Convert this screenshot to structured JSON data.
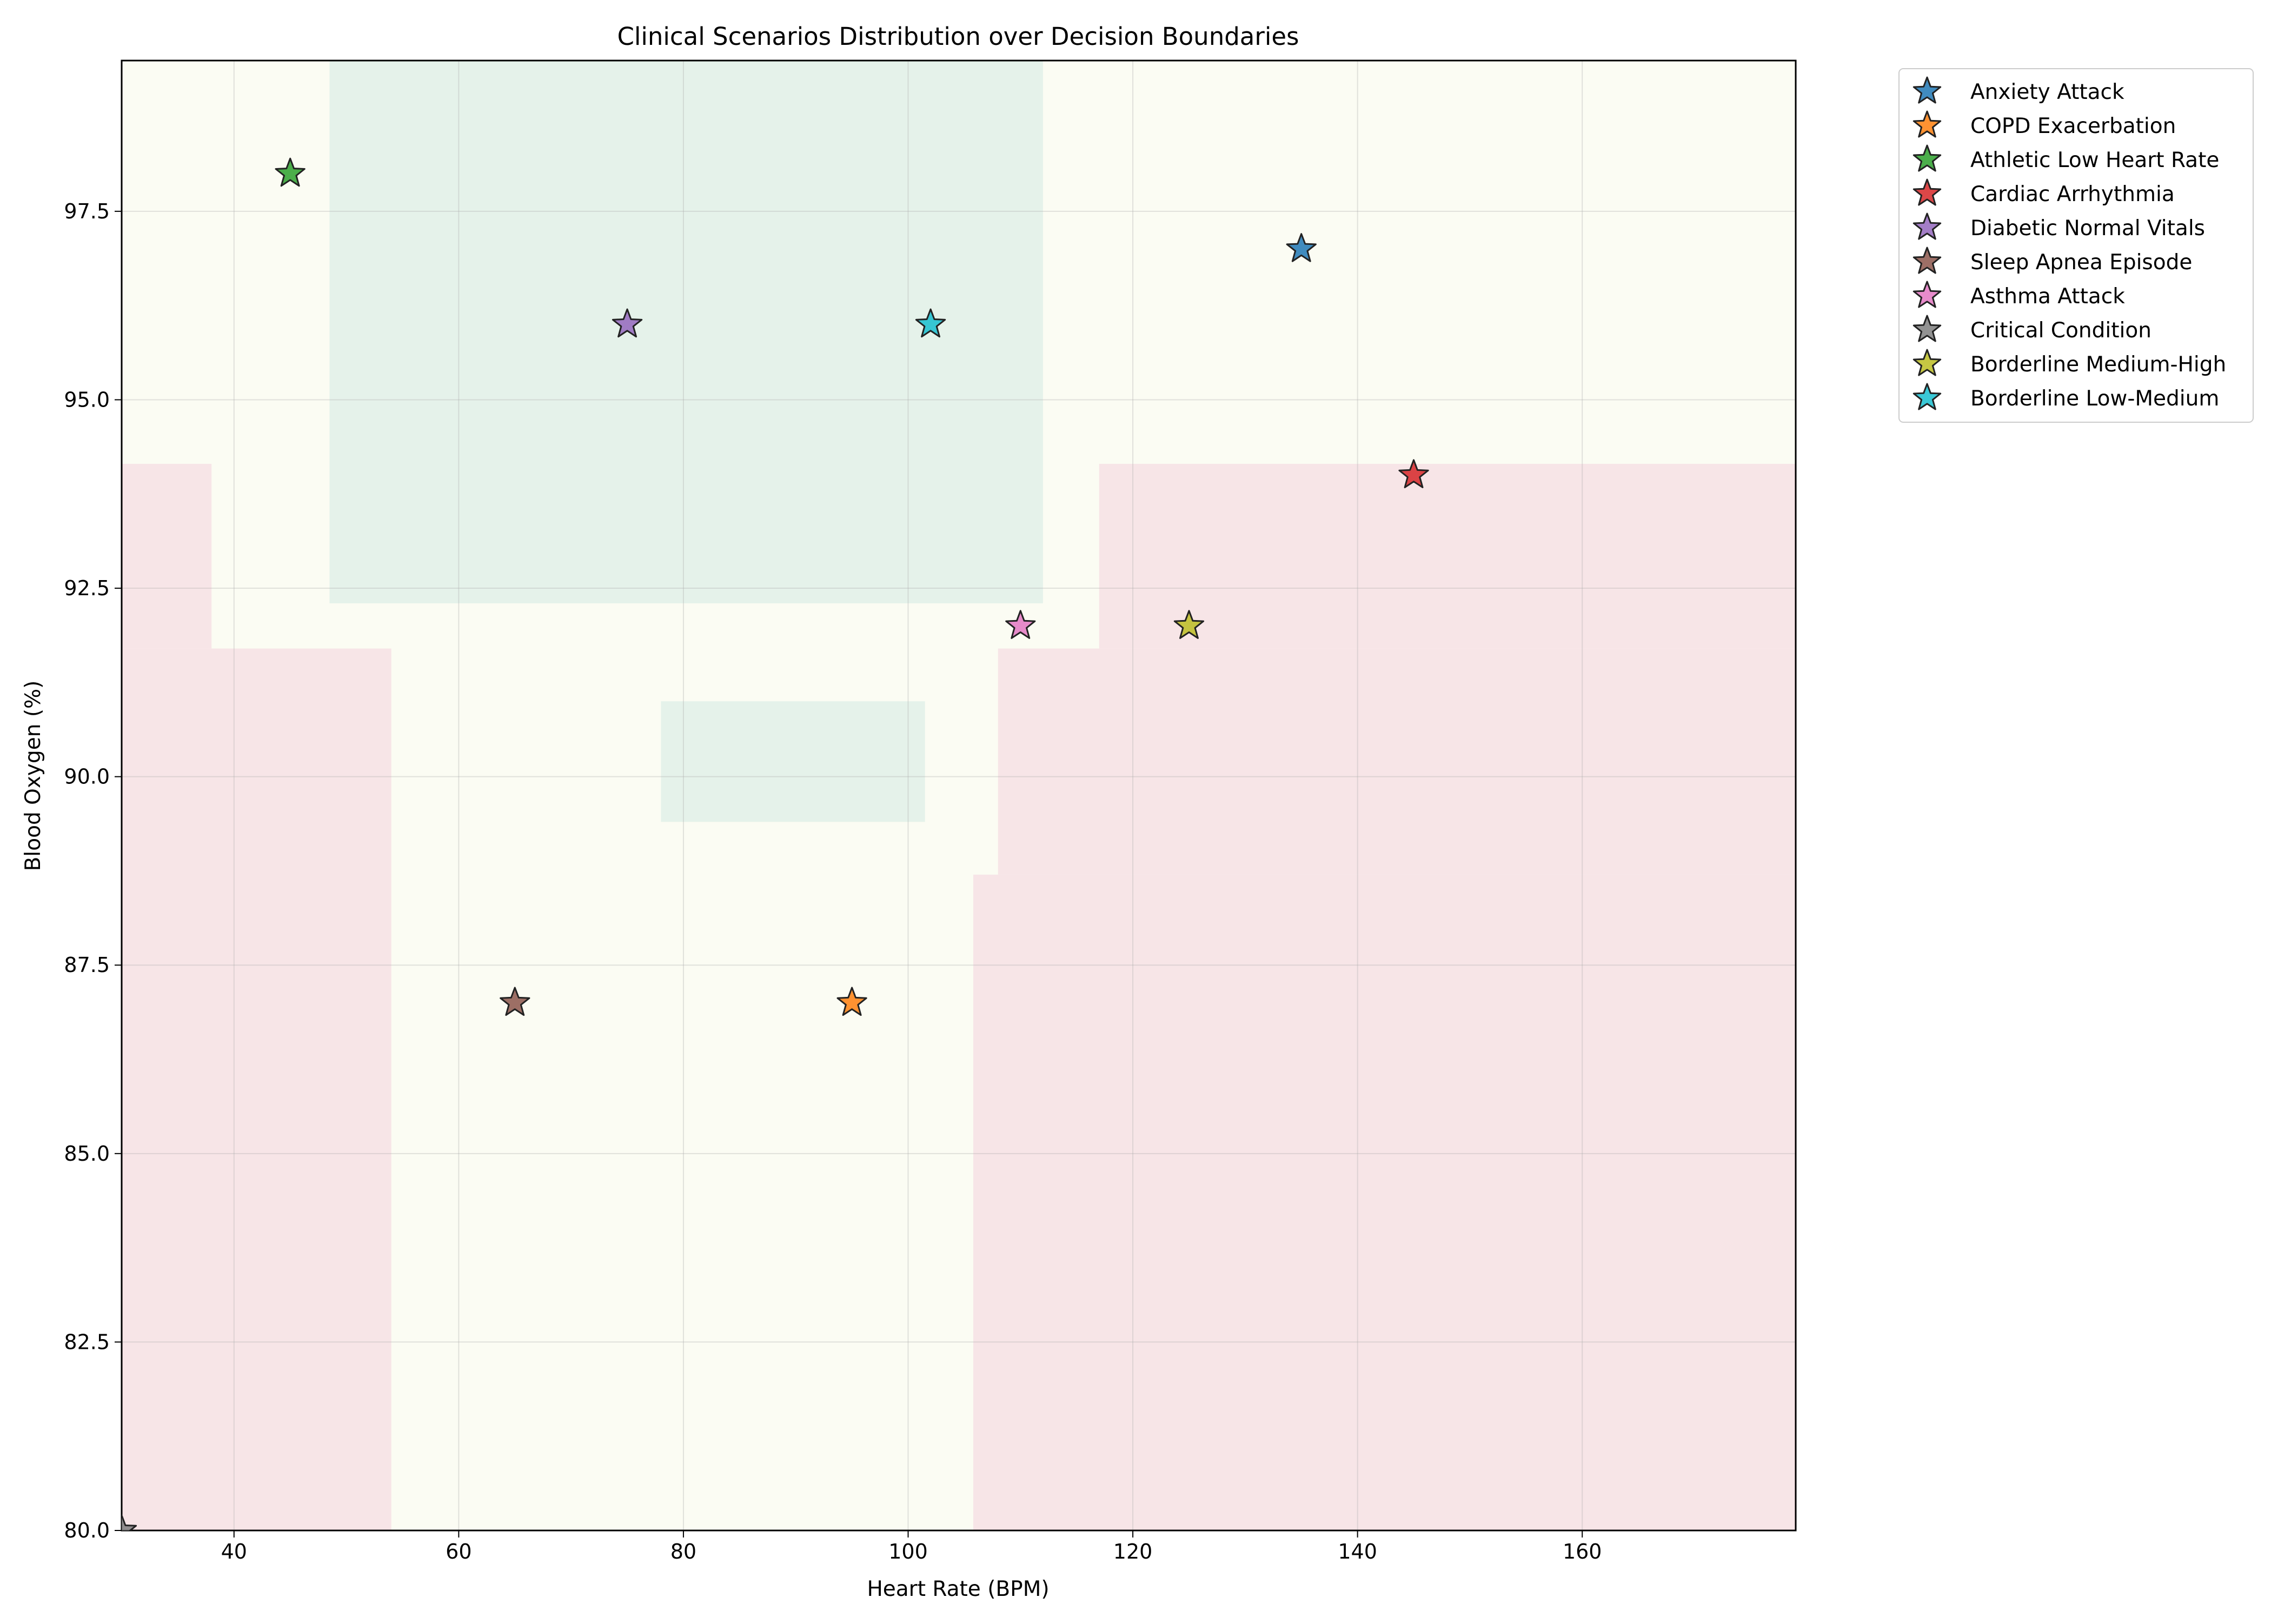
{
  "chart_data": {
    "type": "scatter",
    "title": "Clinical Scenarios Distribution over Decision Boundaries",
    "xlabel": "Heart Rate (BPM)",
    "ylabel": "Blood Oxygen (%)",
    "xlim": [
      30,
      179
    ],
    "ylim": [
      80,
      99.5
    ],
    "x_ticks": [
      40,
      60,
      80,
      100,
      120,
      140,
      160
    ],
    "y_ticks": [
      80.0,
      82.5,
      85.0,
      87.5,
      90.0,
      92.5,
      95.0,
      97.5
    ],
    "x_tick_labels": [
      "40",
      "60",
      "80",
      "100",
      "120",
      "140",
      "160"
    ],
    "y_tick_labels": [
      "80.0",
      "82.5",
      "85.0",
      "87.5",
      "90.0",
      "92.5",
      "95.0",
      "97.5"
    ],
    "grid": true,
    "legend_position": "outside-top-right",
    "marker": "star",
    "regions": {
      "colors": {
        "low": "#e5f2ea",
        "medium": "#fbfcf3",
        "high": "#f7e5e7"
      },
      "high": [
        {
          "x": [
            30,
            54
          ],
          "y": [
            80,
            91.7
          ]
        },
        {
          "x": [
            30,
            38
          ],
          "y": [
            91.7,
            94.15
          ]
        },
        {
          "x": [
            105.8,
            179
          ],
          "y": [
            80,
            88.7
          ]
        },
        {
          "x": [
            108,
            179
          ],
          "y": [
            88.7,
            91.7
          ]
        },
        {
          "x": [
            117,
            179
          ],
          "y": [
            91.7,
            94.15
          ]
        }
      ],
      "low": [
        {
          "x": [
            48.5,
            112
          ],
          "y": [
            92.3,
            99.5
          ]
        },
        {
          "x": [
            78,
            101.5
          ],
          "y": [
            89.4,
            91
          ]
        }
      ]
    },
    "series": [
      {
        "name": "Anxiety Attack",
        "color": "#1f77b4",
        "x": 135,
        "y": 97
      },
      {
        "name": "COPD Exacerbation",
        "color": "#ff7f0e",
        "x": 95,
        "y": 87
      },
      {
        "name": "Athletic Low Heart Rate",
        "color": "#2ca02c",
        "x": 45,
        "y": 98
      },
      {
        "name": "Cardiac Arrhythmia",
        "color": "#d62728",
        "x": 145,
        "y": 94
      },
      {
        "name": "Diabetic Normal Vitals",
        "color": "#9467bd",
        "x": 75,
        "y": 96
      },
      {
        "name": "Sleep Apnea Episode",
        "color": "#8c564b",
        "x": 65,
        "y": 87
      },
      {
        "name": "Asthma Attack",
        "color": "#e377c2",
        "x": 110,
        "y": 92
      },
      {
        "name": "Critical Condition",
        "color": "#7f7f7f",
        "x": 30,
        "y": 80
      },
      {
        "name": "Borderline Medium-High",
        "color": "#bcbd22",
        "x": 125,
        "y": 92
      },
      {
        "name": "Borderline Low-Medium",
        "color": "#17becf",
        "x": 102,
        "y": 96
      }
    ]
  }
}
